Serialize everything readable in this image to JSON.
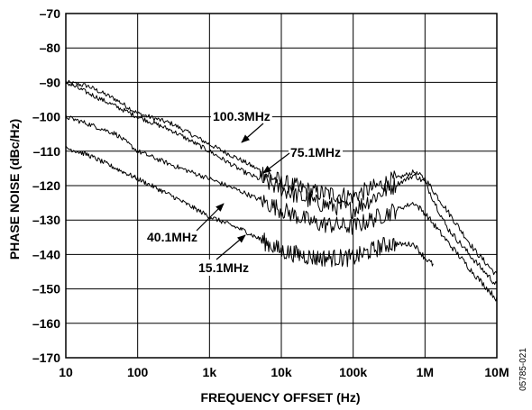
{
  "chart_data": {
    "type": "line",
    "title": "",
    "xlabel": "FREQUENCY OFFSET (Hz)",
    "ylabel": "PHASE NOISE (dBc/Hz)",
    "xscale": "log",
    "xlim": [
      10,
      10000000
    ],
    "ylim": [
      -170,
      -70
    ],
    "grid": true,
    "x_ticks": [
      {
        "value": 10,
        "label": "10"
      },
      {
        "value": 100,
        "label": "100"
      },
      {
        "value": 1000,
        "label": "1k"
      },
      {
        "value": 10000,
        "label": "10k"
      },
      {
        "value": 100000,
        "label": "100k"
      },
      {
        "value": 1000000,
        "label": "1M"
      },
      {
        "value": 10000000,
        "label": "10M"
      }
    ],
    "y_ticks": [
      {
        "value": -70,
        "label": "–70"
      },
      {
        "value": -80,
        "label": "–80"
      },
      {
        "value": -90,
        "label": "–90"
      },
      {
        "value": -100,
        "label": "–100"
      },
      {
        "value": -110,
        "label": "–110"
      },
      {
        "value": -120,
        "label": "–120"
      },
      {
        "value": -130,
        "label": "–130"
      },
      {
        "value": -140,
        "label": "–140"
      },
      {
        "value": -150,
        "label": "–150"
      },
      {
        "value": -160,
        "label": "–160"
      },
      {
        "value": -170,
        "label": "–170"
      }
    ],
    "series": [
      {
        "name": "100.3MHz",
        "x": [
          10,
          20,
          50,
          100,
          300,
          1000,
          3000,
          10000,
          30000,
          100000,
          300000,
          700000,
          1000000,
          2000000,
          5000000,
          10000000
        ],
        "y": [
          -90,
          -91,
          -95,
          -99,
          -102,
          -108,
          -113,
          -119,
          -122,
          -123,
          -119,
          -116,
          -118,
          -127,
          -139,
          -146
        ]
      },
      {
        "name": "75.1MHz",
        "x": [
          10,
          20,
          50,
          100,
          300,
          1000,
          3000,
          10000,
          30000,
          100000,
          300000,
          700000,
          1000000,
          2000000,
          5000000,
          10000000
        ],
        "y": [
          -90,
          -93,
          -97,
          -100,
          -104,
          -110,
          -116,
          -121,
          -125,
          -127,
          -121,
          -117,
          -119,
          -132,
          -142,
          -149
        ]
      },
      {
        "name": "40.1MHz",
        "x": [
          10,
          20,
          50,
          100,
          300,
          1000,
          3000,
          10000,
          30000,
          100000,
          300000,
          700000,
          1000000,
          2000000,
          5000000,
          10000000
        ],
        "y": [
          -100,
          -102,
          -105,
          -110,
          -114,
          -118,
          -122,
          -127,
          -131,
          -132,
          -128,
          -125,
          -128,
          -136,
          -146,
          -153
        ]
      },
      {
        "name": "15.1MHz",
        "x": [
          10,
          20,
          50,
          100,
          300,
          1000,
          3000,
          10000,
          30000,
          100000,
          300000,
          700000,
          1000000,
          1300000
        ],
        "y": [
          -109,
          -111,
          -115,
          -118,
          -123,
          -129,
          -133,
          -139,
          -141,
          -141,
          -137,
          -137,
          -141,
          -143
        ]
      }
    ],
    "annotations": [
      {
        "text": "100.3MHz"
      },
      {
        "text": "75.1MHz"
      },
      {
        "text": "40.1MHz"
      },
      {
        "text": "15.1MHz"
      }
    ]
  },
  "figure_id": "05785-021"
}
